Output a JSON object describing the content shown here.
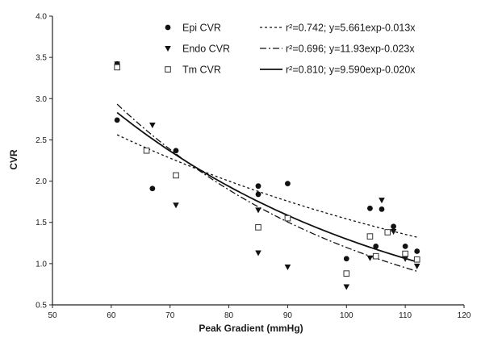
{
  "chart_data": {
    "type": "scatter",
    "title": "",
    "xlabel": "Peak Gradient (mmHg)",
    "ylabel": "CVR",
    "xlim": [
      50,
      120
    ],
    "ylim": [
      0.5,
      4.0
    ],
    "xticks": [
      "50",
      "60",
      "70",
      "80",
      "90",
      "100",
      "110",
      "120"
    ],
    "yticks": [
      "0.5",
      "1.0",
      "1.5",
      "2.0",
      "2.5",
      "3.0",
      "3.5",
      "4.0"
    ],
    "grid": false,
    "legend_position": "top-right",
    "series": [
      {
        "name": "Epi CVR",
        "marker": "circle",
        "color": "#111111",
        "x": [
          61,
          61,
          67,
          71,
          85,
          85,
          90,
          100,
          104,
          105,
          106,
          108,
          110,
          112
        ],
        "y": [
          3.42,
          2.74,
          1.91,
          2.37,
          1.94,
          1.84,
          1.97,
          1.06,
          1.67,
          1.21,
          1.66,
          1.45,
          1.21,
          1.15
        ],
        "fit": {
          "label": "r²=0.742; y=5.661exp-0.013x",
          "a": 5.661,
          "b": -0.013,
          "style": "dotted"
        }
      },
      {
        "name": "Endo CVR",
        "marker": "triangle-down",
        "color": "#111111",
        "x": [
          61,
          67,
          71,
          85,
          85,
          90,
          100,
          104,
          106,
          108,
          110,
          112
        ],
        "y": [
          3.42,
          2.68,
          1.71,
          1.65,
          1.13,
          0.96,
          0.72,
          1.07,
          1.77,
          1.39,
          1.06,
          0.97
        ],
        "fit": {
          "label": "r²=0.696; y=11.93exp-0.023x",
          "a": 11.93,
          "b": -0.023,
          "style": "dash-dot"
        }
      },
      {
        "name": "Tm CVR",
        "marker": "square-open",
        "color": "#111111",
        "x": [
          61,
          66,
          71,
          85,
          90,
          100,
          104,
          105,
          107,
          110,
          112
        ],
        "y": [
          3.38,
          2.37,
          2.07,
          1.44,
          1.55,
          0.88,
          1.33,
          1.09,
          1.38,
          1.12,
          1.05
        ],
        "fit": {
          "label": "r²=0.810; y=9.590exp-0.020x",
          "a": 9.59,
          "b": -0.02,
          "style": "solid"
        }
      }
    ]
  }
}
